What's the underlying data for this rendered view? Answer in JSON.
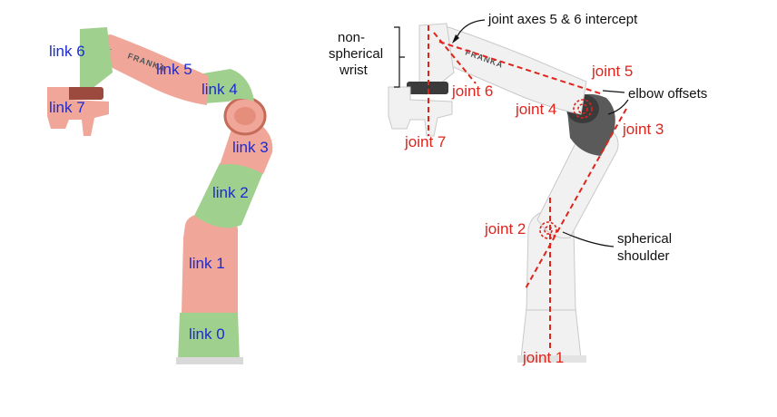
{
  "left_panel": {
    "links": [
      {
        "id": "link0",
        "label": "link 0"
      },
      {
        "id": "link1",
        "label": "link 1"
      },
      {
        "id": "link2",
        "label": "link 2"
      },
      {
        "id": "link3",
        "label": "link 3"
      },
      {
        "id": "link4",
        "label": "link 4"
      },
      {
        "id": "link5",
        "label": "link 5"
      },
      {
        "id": "link6",
        "label": "link 6"
      },
      {
        "id": "link7",
        "label": "link 7"
      }
    ],
    "brand": "FRANKA",
    "colors": {
      "pink": "#f0a698",
      "green": "#9fd08e",
      "blue_text": "#1a2ad6"
    }
  },
  "right_panel": {
    "joints": {
      "joint1": "joint 1",
      "joint2": "joint 2",
      "joint3": "joint 3",
      "joint4": "joint 4",
      "joint5": "joint 5",
      "joint6": "joint 6",
      "joint7": "joint 7"
    },
    "annotations": {
      "intercept": "joint axes 5 & 6 intercept",
      "nonspherical_line1": "non-",
      "nonspherical_line2": "spherical",
      "nonspherical_line3": "wrist",
      "elbow": "elbow offsets",
      "shoulder_line1": "spherical",
      "shoulder_line2": "shoulder"
    },
    "brand": "FRANKA",
    "colors": {
      "axis_red": "#e0241b",
      "robot_white": "#f1f1f1",
      "robot_edge": "#c9c9c9"
    }
  }
}
